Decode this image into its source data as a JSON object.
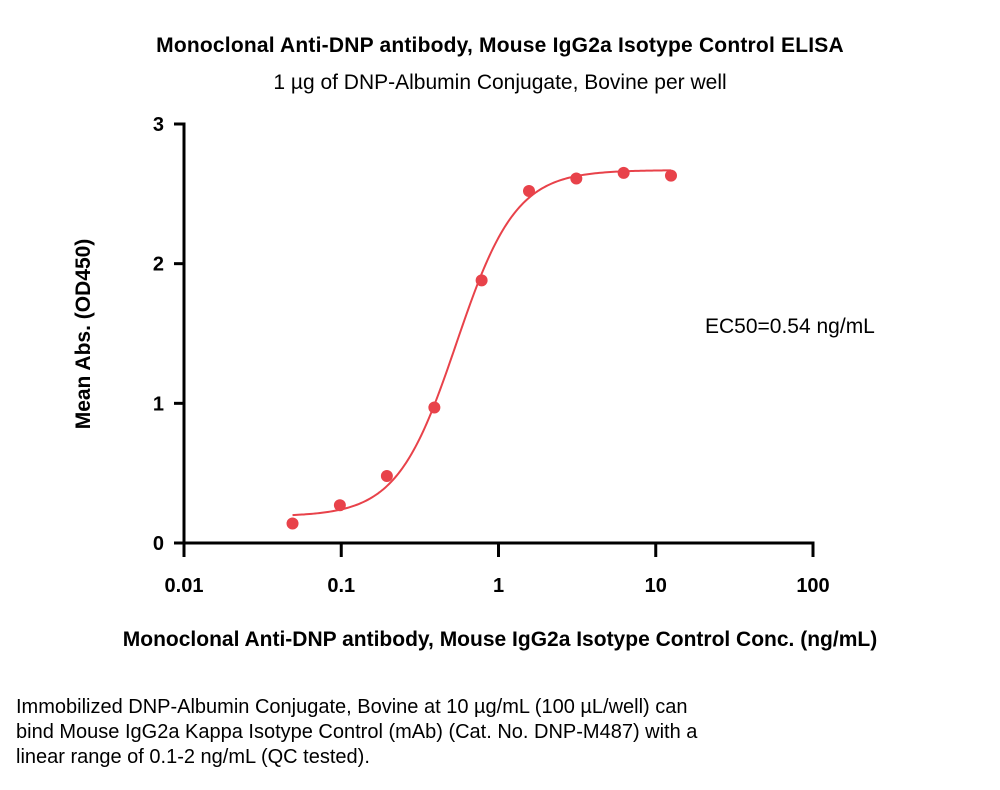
{
  "chart_data": {
    "type": "scatter",
    "title": "Monoclonal Anti-DNP antibody, Mouse IgG2a Isotype Control ELISA",
    "subtitle": "1 µg of DNP-Albumin Conjugate, Bovine per well",
    "xlabel": "Monoclonal Anti-DNP antibody, Mouse IgG2a Isotype Control Conc. (ng/mL)",
    "ylabel": "Mean Abs. (OD450)",
    "x_scale": "log",
    "xlim": [
      0.01,
      100
    ],
    "ylim": [
      0,
      3
    ],
    "x_ticks": [
      0.01,
      0.1,
      1,
      10,
      100
    ],
    "x_tick_labels": [
      "0.01",
      "0.1",
      "1",
      "10",
      "100"
    ],
    "y_ticks": [
      0,
      1,
      2,
      3
    ],
    "y_tick_labels": [
      "0",
      "1",
      "2",
      "3"
    ],
    "grid": false,
    "series": [
      {
        "color": "#e8424a",
        "fit": "4PL sigmoid",
        "x": [
          0.049,
          0.098,
          0.195,
          0.391,
          0.781,
          1.563,
          3.125,
          6.25,
          12.5
        ],
        "y": [
          0.14,
          0.27,
          0.48,
          0.97,
          1.88,
          2.52,
          2.61,
          2.65,
          2.63
        ]
      }
    ],
    "fit_params": {
      "bottom": 0.19,
      "top": 2.67,
      "ec50": 0.54,
      "hill": 2.3
    },
    "annotations": [
      {
        "text": "EC50=0.54 ng/mL"
      }
    ]
  },
  "caption_lines": [
    "Immobilized DNP-Albumin Conjugate, Bovine at 10 µg/mL (100 µL/well) can",
    "bind Mouse IgG2a Kappa Isotype Control (mAb) (Cat. No. DNP-M487) with a",
    "linear range of 0.1-2 ng/mL (QC tested)."
  ]
}
